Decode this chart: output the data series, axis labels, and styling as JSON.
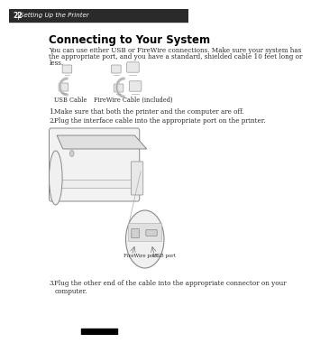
{
  "page_number": "22",
  "page_header": "Setting Up the Printer",
  "title": "Connecting to Your System",
  "body_text_1": "You can use either USB or FireWire connections. Make sure your system has",
  "body_text_2": "the appropriate port, and you have a standard, shielded cable 10 feet long or",
  "body_text_3": "less.",
  "usb_label": "USB Cable",
  "firewire_label": "FireWire Cable (included)",
  "step1": "Make sure that both the printer and the computer are off.",
  "step2": "Plug the interface cable into the appropriate port on the printer.",
  "step3": "Plug the other end of the cable into the appropriate connector on your",
  "step3b": "computer.",
  "firewire_port_label": "FireWire port",
  "usb_port_label": "USB port",
  "bg_color": "#ffffff",
  "text_color": "#2a2a2a",
  "header_color": "#444444",
  "title_color": "#000000",
  "gray_light": "#e8e8e8",
  "gray_mid": "#cccccc",
  "gray_dark": "#999999",
  "gray_line": "#777777",
  "page_width": 3.0,
  "page_height": 3.6
}
